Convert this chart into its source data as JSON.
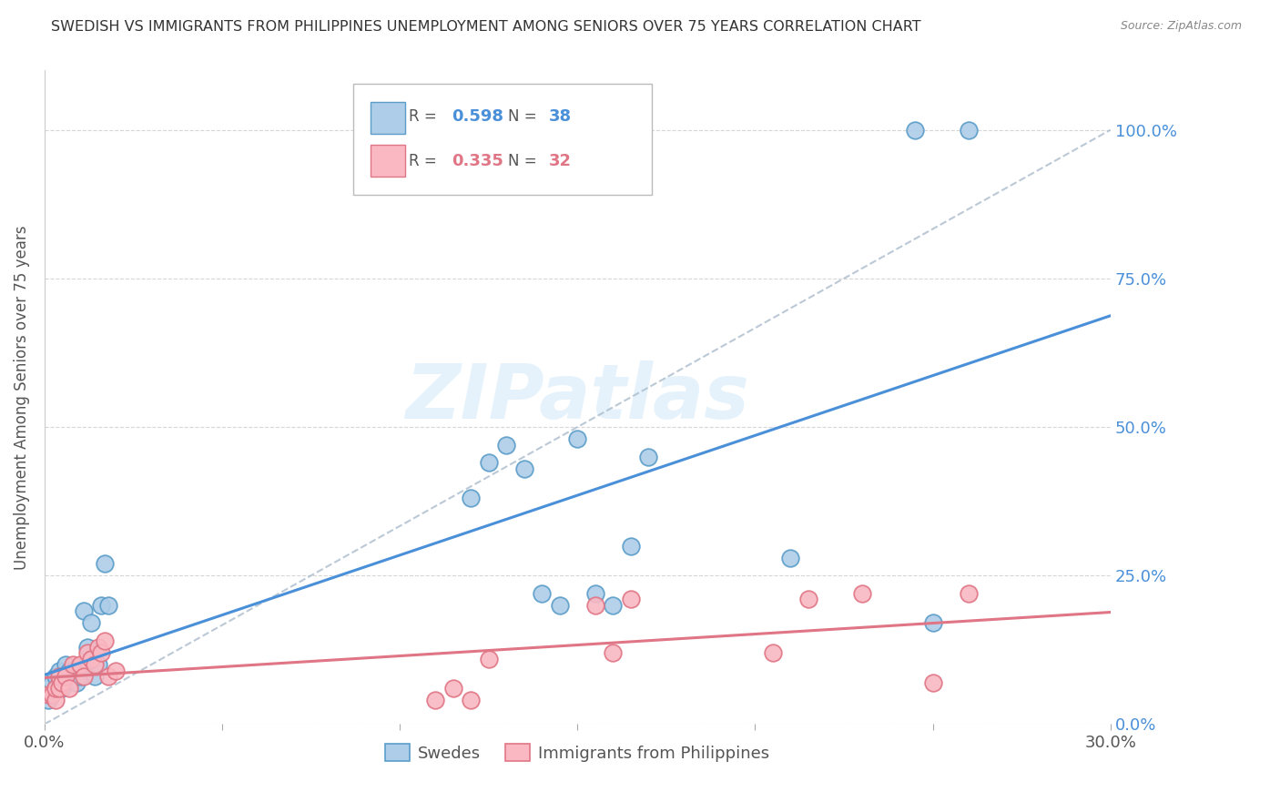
{
  "title": "SWEDISH VS IMMIGRANTS FROM PHILIPPINES UNEMPLOYMENT AMONG SENIORS OVER 75 YEARS CORRELATION CHART",
  "source": "Source: ZipAtlas.com",
  "ylabel": "Unemployment Among Seniors over 75 years",
  "xlim": [
    0.0,
    0.3
  ],
  "ylim": [
    0.0,
    1.1
  ],
  "yticks": [
    0.0,
    0.25,
    0.5,
    0.75,
    1.0
  ],
  "ytick_labels": [
    "0.0%",
    "25.0%",
    "50.0%",
    "75.0%",
    "100.0%"
  ],
  "xticks": [
    0.0,
    0.05,
    0.1,
    0.15,
    0.2,
    0.25,
    0.3
  ],
  "swedes_R": 0.598,
  "swedes_N": 38,
  "phil_R": 0.335,
  "phil_N": 32,
  "swedes_x": [
    0.001,
    0.002,
    0.002,
    0.003,
    0.003,
    0.004,
    0.004,
    0.005,
    0.005,
    0.006,
    0.006,
    0.007,
    0.008,
    0.009,
    0.01,
    0.011,
    0.012,
    0.013,
    0.014,
    0.015,
    0.016,
    0.017,
    0.018,
    0.12,
    0.125,
    0.13,
    0.135,
    0.14,
    0.145,
    0.15,
    0.155,
    0.16,
    0.165,
    0.17,
    0.21,
    0.245,
    0.25,
    0.26
  ],
  "swedes_y": [
    0.04,
    0.05,
    0.07,
    0.06,
    0.08,
    0.07,
    0.09,
    0.06,
    0.08,
    0.08,
    0.1,
    0.09,
    0.09,
    0.07,
    0.08,
    0.19,
    0.13,
    0.17,
    0.08,
    0.1,
    0.2,
    0.27,
    0.2,
    0.38,
    0.44,
    0.47,
    0.43,
    0.22,
    0.2,
    0.48,
    0.22,
    0.2,
    0.3,
    0.45,
    0.28,
    1.0,
    0.17,
    1.0
  ],
  "phil_x": [
    0.001,
    0.002,
    0.003,
    0.003,
    0.004,
    0.004,
    0.005,
    0.006,
    0.007,
    0.008,
    0.01,
    0.011,
    0.012,
    0.013,
    0.014,
    0.015,
    0.016,
    0.017,
    0.018,
    0.02,
    0.11,
    0.115,
    0.12,
    0.125,
    0.155,
    0.16,
    0.165,
    0.205,
    0.215,
    0.23,
    0.25,
    0.26
  ],
  "phil_y": [
    0.05,
    0.05,
    0.04,
    0.06,
    0.06,
    0.08,
    0.07,
    0.08,
    0.06,
    0.1,
    0.1,
    0.08,
    0.12,
    0.11,
    0.1,
    0.13,
    0.12,
    0.14,
    0.08,
    0.09,
    0.04,
    0.06,
    0.04,
    0.11,
    0.2,
    0.12,
    0.21,
    0.12,
    0.21,
    0.22,
    0.07,
    0.22
  ],
  "watermark_text": "ZIPatlas",
  "watermark_color": "#d0e8f8",
  "legend_labels": [
    "Swedes",
    "Immigrants from Philippines"
  ],
  "blue_face": "#aecde8",
  "blue_edge": "#5b9dc9",
  "pink_face": "#f9b8c2",
  "pink_edge": "#e07585",
  "blue_line": "#4a90d9",
  "pink_line": "#e07585",
  "ref_line_color": "#aabbcc",
  "background_color": "#ffffff",
  "grid_color": "#cccccc"
}
